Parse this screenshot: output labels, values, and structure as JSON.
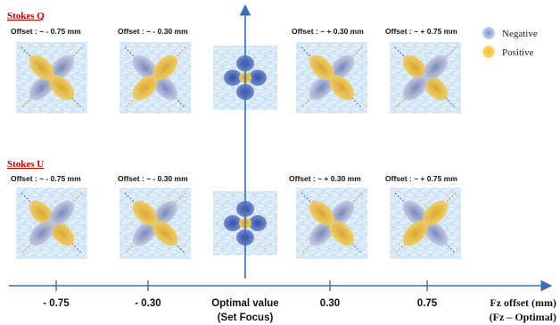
{
  "sections": {
    "stokes_q": "Stokes Q",
    "stokes_u": "Stokes U"
  },
  "legend": {
    "negative": "Negative",
    "positive": "Positive",
    "negative_color": "#8fa3d6",
    "positive_color": "#f5c842"
  },
  "colors": {
    "axis": "#3a6fb8",
    "section_title": "#c00000",
    "negative_lobe": "#8d96bf",
    "negative_lobe_strong": "#4c69b8",
    "positive_lobe": "#e6b52a",
    "positive_lobe_light": "#f4d078"
  },
  "stokes_q_panels": [
    {
      "offset_label": "Offset : ~  - 0.75 mm"
    },
    {
      "offset_label": "Offset : ~  - 0.30 mm"
    },
    {
      "offset_label": ""
    },
    {
      "offset_label": "Offset : ~ + 0.30 mm"
    },
    {
      "offset_label": "Offset : ~ + 0.75 mm"
    }
  ],
  "stokes_u_panels": [
    {
      "offset_label": "Offset : ~  - 0.75 mm"
    },
    {
      "offset_label": "Offset : ~  - 0.30 mm"
    },
    {
      "offset_label": ""
    },
    {
      "offset_label": "Offset : ~ + 0.30 mm"
    },
    {
      "offset_label": "Offset : ~ + 0.75 mm"
    }
  ],
  "axis": {
    "ticks": [
      "- 0.75",
      "- 0.30",
      "Optimal value",
      "0.30",
      "0.75"
    ],
    "optimal_sub": "(Set Focus)",
    "title_line1": "Fz offset (mm)",
    "title_line2": "(Fz – Optimal)"
  }
}
